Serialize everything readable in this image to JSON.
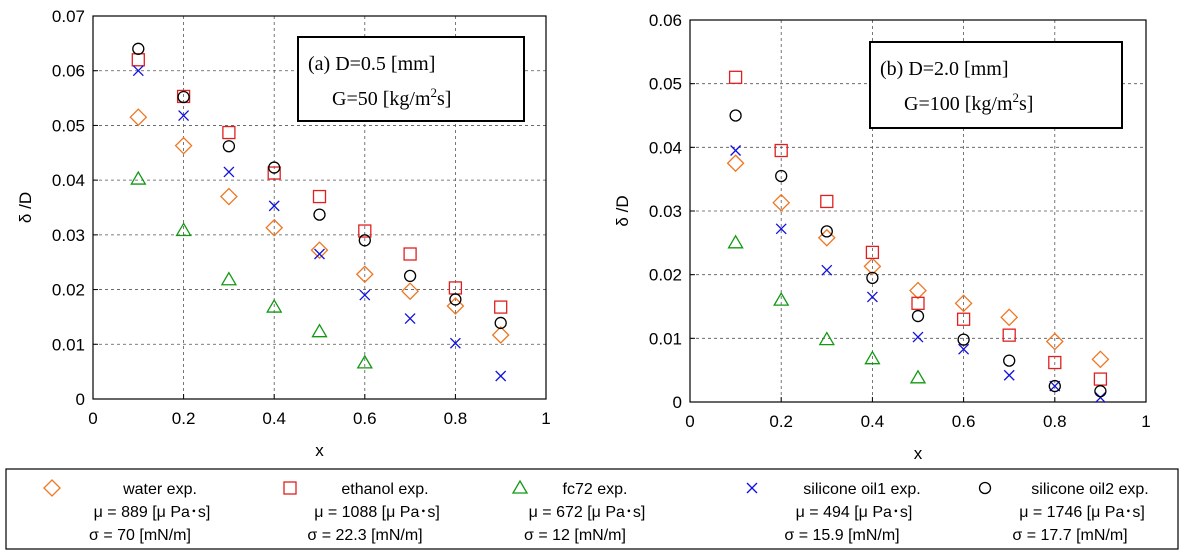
{
  "chart_data": [
    {
      "type": "scatter",
      "xlabel": "x",
      "ylabel": "δ /D",
      "xlim": [
        0,
        1
      ],
      "ylim": [
        0,
        0.07
      ],
      "x_ticks": [
        "0",
        "0.2",
        "0.4",
        "0.6",
        "0.8",
        "1"
      ],
      "y_ticks": [
        "0",
        "0.01",
        "0.02",
        "0.03",
        "0.04",
        "0.05",
        "0.06",
        "0.07"
      ],
      "grid": true,
      "annotation": [
        "(a)  D=0.5 [mm]",
        "G=50  [kg/m",
        "2",
        "s]"
      ],
      "series": [
        {
          "key": "water",
          "x": [
            0.1,
            0.2,
            0.3,
            0.4,
            0.5,
            0.6,
            0.7,
            0.8,
            0.9
          ],
          "y": [
            0.0515,
            0.0463,
            0.037,
            0.0313,
            0.0272,
            0.0228,
            0.0197,
            0.017,
            0.0117
          ]
        },
        {
          "key": "ethanol",
          "x": [
            0.1,
            0.2,
            0.3,
            0.4,
            0.5,
            0.6,
            0.7,
            0.8,
            0.9
          ],
          "y": [
            0.062,
            0.0553,
            0.0487,
            0.0413,
            0.037,
            0.0307,
            0.0265,
            0.0203,
            0.0168
          ]
        },
        {
          "key": "fc72",
          "x": [
            0.1,
            0.2,
            0.3,
            0.4,
            0.5,
            0.6
          ],
          "y": [
            0.0402,
            0.0308,
            0.0218,
            0.0168,
            0.0123,
            0.0066
          ]
        },
        {
          "key": "silicone1",
          "x": [
            0.1,
            0.2,
            0.3,
            0.4,
            0.5,
            0.6,
            0.7,
            0.8,
            0.9
          ],
          "y": [
            0.06,
            0.0518,
            0.0415,
            0.0353,
            0.0265,
            0.019,
            0.0147,
            0.0102,
            0.0042
          ]
        },
        {
          "key": "silicone2",
          "x": [
            0.1,
            0.2,
            0.3,
            0.4,
            0.5,
            0.6,
            0.7,
            0.8,
            0.9
          ],
          "y": [
            0.064,
            0.0552,
            0.0462,
            0.0423,
            0.0337,
            0.029,
            0.0225,
            0.0182,
            0.0139
          ]
        }
      ]
    },
    {
      "type": "scatter",
      "xlabel": "x",
      "ylabel": "δ /D",
      "xlim": [
        0,
        1
      ],
      "ylim": [
        0,
        0.06
      ],
      "x_ticks": [
        "0",
        "0.2",
        "0.4",
        "0.6",
        "0.8",
        "1"
      ],
      "y_ticks": [
        "0",
        "0.01",
        "0.02",
        "0.03",
        "0.04",
        "0.05",
        "0.06"
      ],
      "grid": true,
      "annotation": [
        "(b)  D=2.0 [mm]",
        "G=100  [kg/m",
        "2",
        "s]"
      ],
      "series": [
        {
          "key": "water",
          "x": [
            0.1,
            0.2,
            0.3,
            0.4,
            0.5,
            0.6,
            0.7,
            0.8,
            0.9
          ],
          "y": [
            0.0375,
            0.0313,
            0.0258,
            0.0213,
            0.0175,
            0.0155,
            0.0133,
            0.0095,
            0.0067
          ]
        },
        {
          "key": "ethanol",
          "x": [
            0.1,
            0.2,
            0.3,
            0.4,
            0.5,
            0.6,
            0.7,
            0.8,
            0.9
          ],
          "y": [
            0.051,
            0.0395,
            0.0315,
            0.0235,
            0.0155,
            0.013,
            0.0105,
            0.0062,
            0.0036
          ]
        },
        {
          "key": "fc72",
          "x": [
            0.1,
            0.2,
            0.3,
            0.4,
            0.5
          ],
          "y": [
            0.025,
            0.016,
            0.0098,
            0.0068,
            0.0038
          ]
        },
        {
          "key": "silicone1",
          "x": [
            0.1,
            0.2,
            0.3,
            0.4,
            0.5,
            0.6,
            0.7,
            0.8,
            0.9
          ],
          "y": [
            0.0395,
            0.0272,
            0.0207,
            0.0165,
            0.0102,
            0.0083,
            0.0042,
            0.0025,
            0.0007
          ]
        },
        {
          "key": "silicone2",
          "x": [
            0.1,
            0.2,
            0.3,
            0.4,
            0.5,
            0.6,
            0.7,
            0.8,
            0.9
          ],
          "y": [
            0.045,
            0.0355,
            0.0268,
            0.0195,
            0.0135,
            0.0098,
            0.0065,
            0.0025,
            0.0017
          ]
        }
      ]
    }
  ],
  "legend": [
    {
      "key": "water",
      "name": "water exp.",
      "mu": "μ = 889 [μ Pa･s]",
      "sigma": "σ = 70 [mN/m]",
      "marker": "diamond",
      "color": "#ee7722"
    },
    {
      "key": "ethanol",
      "name": "ethanol exp.",
      "mu": "μ = 1088 [μ Pa･s]",
      "sigma": "σ = 22.3 [mN/m]",
      "marker": "square",
      "color": "#e02020"
    },
    {
      "key": "fc72",
      "name": "fc72 exp.",
      "mu": "μ = 672 [μ Pa･s]",
      "sigma": "σ = 12 [mN/m]",
      "marker": "triangle",
      "color": "#119911"
    },
    {
      "key": "silicone1",
      "name": "silicone oil1 exp.",
      "mu": "μ = 494 [μ Pa･s]",
      "sigma": "σ = 15.9 [mN/m]",
      "marker": "cross",
      "color": "#1111dd"
    },
    {
      "key": "silicone2",
      "name": "silicone oil2 exp.",
      "mu": "μ = 1746 [μ Pa･s]",
      "sigma": "σ = 17.7 [mN/m]",
      "marker": "circle",
      "color": "#000000"
    }
  ]
}
